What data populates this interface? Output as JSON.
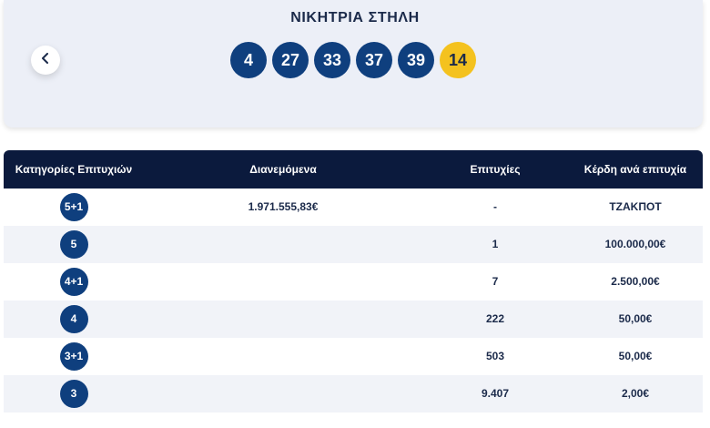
{
  "winning": {
    "title": "ΝΙΚΗΤΡΙΑ ΣΤΗΛΗ",
    "numbers": [
      "4",
      "27",
      "33",
      "37",
      "39"
    ],
    "joker": "14"
  },
  "icons": {
    "prev": "chevron-left-icon"
  },
  "colors": {
    "ball": "#0f3f7e",
    "joker": "#f4c21f",
    "header": "#0b1a3d"
  },
  "table": {
    "headers": [
      "Κατηγορίες Επιτυχιών",
      "Διανεμόμενα",
      "Επιτυχίες",
      "Κέρδη ανά επιτυχία"
    ],
    "rows": [
      {
        "category": "5+1",
        "distributed": "1.971.555,83€",
        "winners": "-",
        "prize": "ΤΖΑΚΠΟΤ"
      },
      {
        "category": "5",
        "distributed": "",
        "winners": "1",
        "prize": "100.000,00€"
      },
      {
        "category": "4+1",
        "distributed": "",
        "winners": "7",
        "prize": "2.500,00€"
      },
      {
        "category": "4",
        "distributed": "",
        "winners": "222",
        "prize": "50,00€"
      },
      {
        "category": "3+1",
        "distributed": "",
        "winners": "503",
        "prize": "50,00€"
      },
      {
        "category": "3",
        "distributed": "",
        "winners": "9.407",
        "prize": "2,00€"
      }
    ]
  }
}
